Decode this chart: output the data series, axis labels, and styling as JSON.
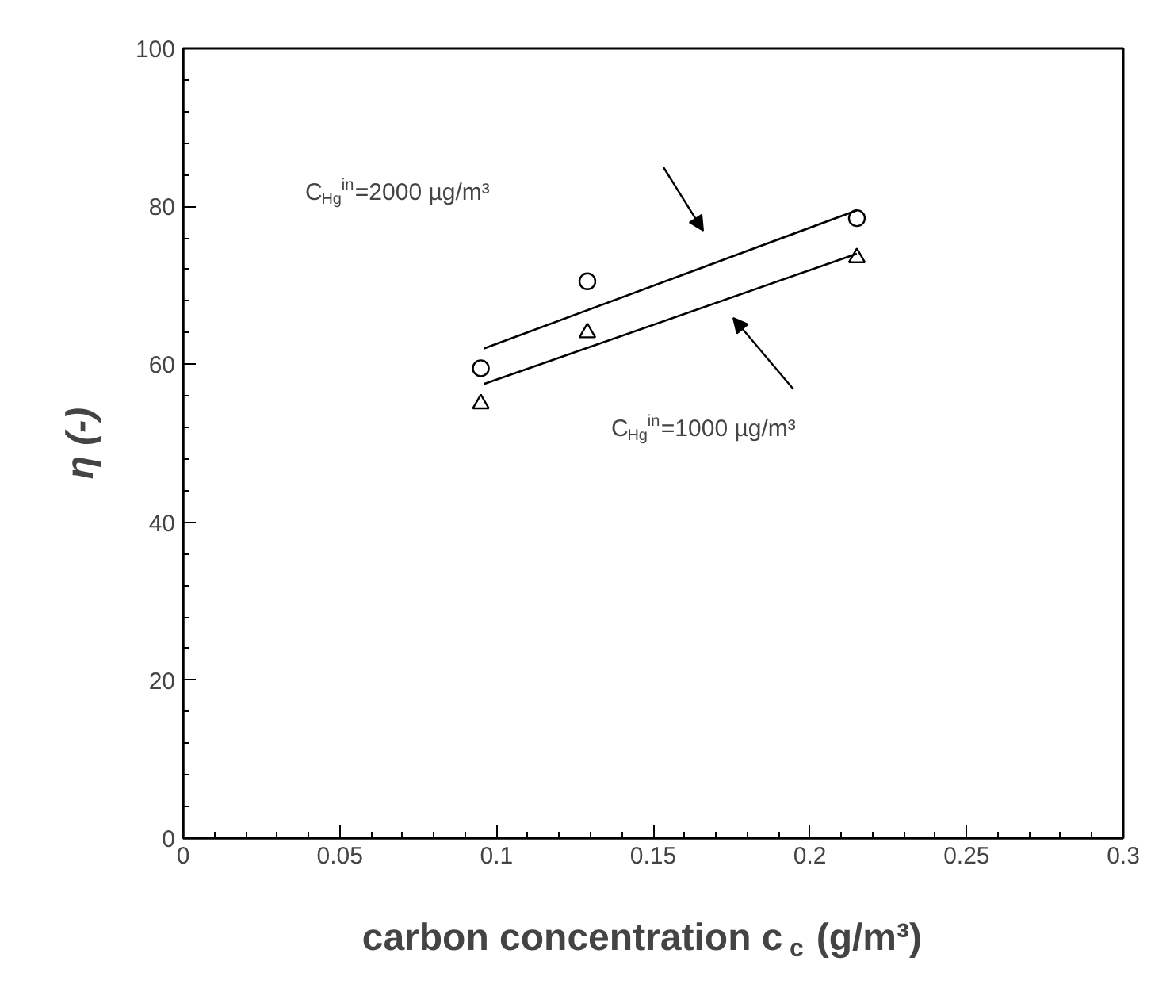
{
  "chart_data": {
    "type": "scatter",
    "xlabel": "carbon concentration c$_{c}$ (g/m³)",
    "ylabel": "η (-)",
    "xlim": [
      0,
      0.3
    ],
    "ylim": [
      0,
      100
    ],
    "xticks": [
      0,
      0.05,
      0.1,
      0.15,
      0.2,
      0.25,
      0.3
    ],
    "yticks": [
      0,
      20,
      40,
      60,
      80,
      100
    ],
    "series": [
      {
        "marker": "circle",
        "color": "#000000",
        "x": [
          0.095,
          0.129,
          0.215
        ],
        "values": [
          59.5,
          70.5,
          78.5
        ]
      },
      {
        "marker": "triangle",
        "color": "#000000",
        "x": [
          0.095,
          0.129,
          0.215
        ],
        "values": [
          55,
          64,
          73.5
        ]
      },
      {
        "type": "line",
        "marker": "none",
        "line_style": "solid",
        "color": "#000000",
        "x": [
          0.096,
          0.215
        ],
        "values": [
          62,
          79.5
        ]
      },
      {
        "type": "line",
        "marker": "none",
        "line_style": "solid",
        "color": "#000000",
        "x": [
          0.096,
          0.215
        ],
        "values": [
          57.5,
          74
        ]
      }
    ],
    "annotations": [
      "C$_{Hg}$$^{in}$=2000 µg/m³",
      "C$_{Hg}$$^{in}$=1000 µg/m³"
    ]
  }
}
